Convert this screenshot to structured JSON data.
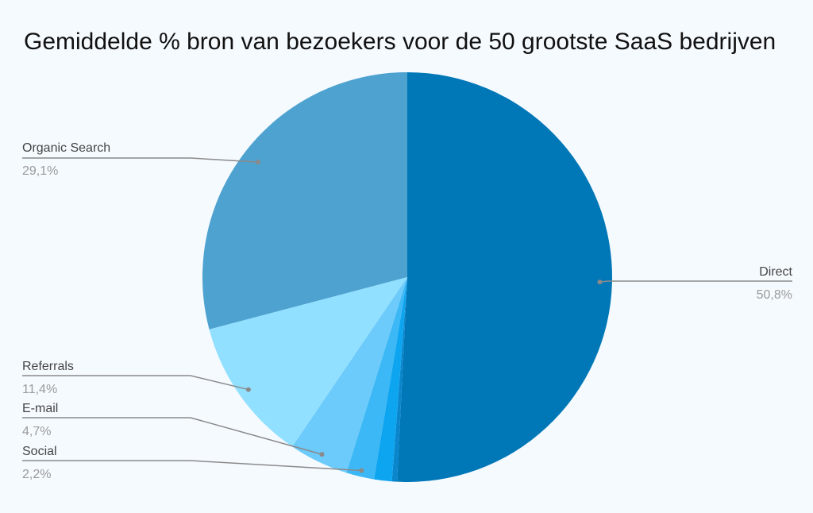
{
  "chart_data": {
    "type": "pie",
    "title": "Gemiddelde % bron van bezoekers voor de 50 grootste SaaS bedrijven",
    "start_angle_deg": 0,
    "direction": "clockwise",
    "slices": [
      {
        "label": "Direct",
        "value": 50.8,
        "value_label": "50,8%",
        "color": "#0077b6",
        "labeled": true
      },
      {
        "label": "",
        "value": 0.4,
        "value_label": "",
        "color": "#0a86cc",
        "labeled": false
      },
      {
        "label": "",
        "value": 1.4,
        "value_label": "",
        "color": "#0ea5f0",
        "labeled": false
      },
      {
        "label": "Social",
        "value": 2.2,
        "value_label": "2,2%",
        "color": "#3bb8f5",
        "labeled": true
      },
      {
        "label": "E-mail",
        "value": 4.7,
        "value_label": "4,7%",
        "color": "#6ccbfb",
        "labeled": true
      },
      {
        "label": "Referrals",
        "value": 11.4,
        "value_label": "11,4%",
        "color": "#92e0ff",
        "labeled": true
      },
      {
        "label": "Organic Search",
        "value": 29.1,
        "value_label": "29,1%",
        "color": "#4ea2d0",
        "labeled": true
      }
    ],
    "legend": "none",
    "labels_position": "outside-with-leader-lines"
  }
}
